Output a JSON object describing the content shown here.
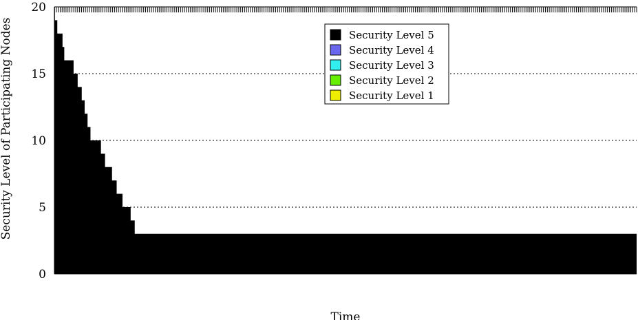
{
  "chart_data": {
    "type": "area",
    "xlabel": "Time",
    "ylabel": "Security Level of Participating Nodes",
    "ylim": [
      0,
      20
    ],
    "yticks": [
      0,
      5,
      10,
      15,
      20
    ],
    "grid": "horizontal dotted",
    "legend_position": "top-center",
    "x_step_unit": "time step",
    "series": [
      {
        "name": "Security Level 5",
        "color": "#000000",
        "values": [
          20,
          19,
          19,
          19,
          19,
          18,
          18,
          18,
          18,
          18,
          18,
          18,
          18,
          18,
          17,
          17,
          17,
          16,
          16,
          16,
          16,
          16,
          16,
          16,
          16,
          16,
          16,
          16,
          16,
          16,
          16,
          16,
          16,
          15,
          15,
          15,
          15,
          15,
          15,
          15,
          14,
          14,
          14,
          14,
          14,
          14,
          14,
          13,
          13,
          13,
          13,
          13,
          12,
          12,
          12,
          12,
          12,
          11,
          11,
          11,
          11,
          11,
          10,
          10,
          10,
          10,
          10,
          10,
          10,
          10,
          10,
          10,
          10,
          10,
          10,
          10,
          10,
          10,
          10,
          10,
          9,
          9,
          9,
          9,
          9,
          9,
          9,
          8,
          8,
          8,
          8,
          8,
          8,
          8,
          8,
          8,
          8,
          8,
          8,
          7,
          7,
          7,
          7,
          7,
          7,
          7,
          7,
          6,
          6,
          6,
          6,
          6,
          6,
          6,
          6,
          6,
          6,
          5,
          5,
          5,
          5,
          5,
          5,
          5,
          5,
          5,
          5,
          5,
          5,
          5,
          5,
          4,
          4,
          4,
          4,
          4,
          4,
          4,
          3,
          3,
          3,
          3,
          3,
          3,
          3,
          3,
          3,
          3,
          3,
          3,
          3,
          3,
          3,
          3,
          3,
          3,
          3,
          3,
          3,
          3,
          3,
          3,
          3
        ],
        "tail_value": 3
      },
      {
        "name": "Security Level 4",
        "color": "#6b66ee",
        "values": []
      },
      {
        "name": "Security Level 3",
        "color": "#33eeee",
        "values": []
      },
      {
        "name": "Security Level 2",
        "color": "#66ee00",
        "values": []
      },
      {
        "name": "Security Level 1",
        "color": "#eeee00",
        "values": []
      }
    ]
  }
}
